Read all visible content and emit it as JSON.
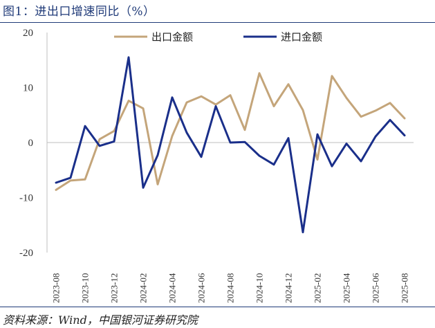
{
  "title": "图1：进出口增速同比（%）",
  "source": "资料来源：Wind，中国银河证券研究院",
  "chart_data": {
    "type": "line",
    "title": "图1：进出口增速同比（%）",
    "xlabel": "",
    "ylabel": "",
    "ylim": [
      -20,
      20
    ],
    "yticks": [
      20,
      10,
      0,
      -10,
      -20
    ],
    "x": [
      "2023-08",
      "2023-09",
      "2023-10",
      "2023-11",
      "2023-12",
      "2024-01",
      "2024-02",
      "2024-03",
      "2024-04",
      "2024-05",
      "2024-06",
      "2024-07",
      "2024-08",
      "2024-09",
      "2024-10",
      "2024-11",
      "2024-12",
      "2025-01",
      "2025-02",
      "2025-03",
      "2025-04",
      "2025-05",
      "2025-06",
      "2025-07",
      "2025-08"
    ],
    "xtick_labels": [
      "2023-08",
      "2023-10",
      "2023-12",
      "2024-02",
      "2024-04",
      "2024-06",
      "2024-08",
      "2024-10",
      "2024-12",
      "2025-02",
      "2025-04",
      "2025-06",
      "2025-08"
    ],
    "legend_position": "top",
    "series": [
      {
        "name": "出口金额",
        "color": "#c4a57a",
        "values": [
          -8.6,
          -6.9,
          -6.7,
          0.6,
          2.1,
          7.6,
          6.2,
          -7.6,
          1.2,
          7.3,
          8.4,
          6.9,
          8.6,
          2.3,
          12.6,
          6.6,
          10.6,
          5.9,
          -3.1,
          12.1,
          8.1,
          4.7,
          5.8,
          7.2,
          4.4
        ]
      },
      {
        "name": "进口金额",
        "color": "#1a2f8a",
        "values": [
          -7.3,
          -6.4,
          3.0,
          -0.6,
          0.2,
          15.5,
          -8.2,
          -2.3,
          8.2,
          1.8,
          -2.6,
          6.6,
          0.0,
          0.1,
          -2.4,
          -4.0,
          0.8,
          -16.3,
          1.5,
          -4.3,
          -0.2,
          -3.4,
          1.1,
          4.1,
          1.3
        ]
      }
    ]
  }
}
